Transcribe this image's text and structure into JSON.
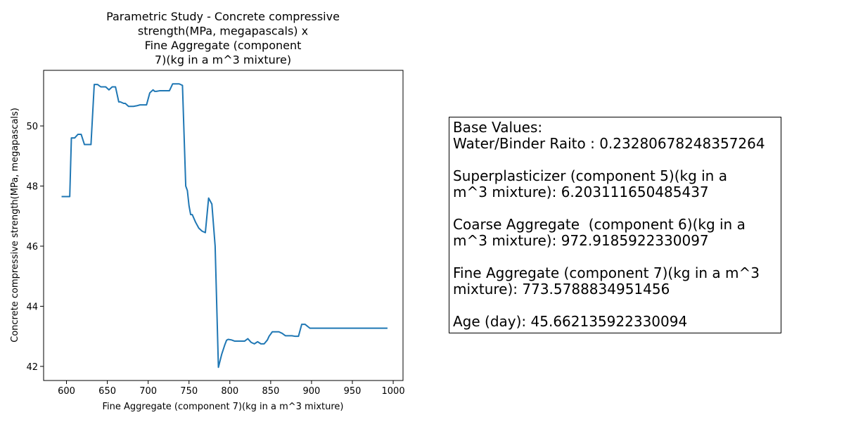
{
  "chart_data": {
    "type": "line",
    "title_lines": [
      "Parametric Study - Concrete compressive",
      "strength(MPa, megapascals)  x",
      "Fine Aggregate (component",
      "7)(kg in a m^3 mixture)"
    ],
    "xlabel": "Fine Aggregate (component 7)(kg in a m^3 mixture)",
    "ylabel": "Concrete compressive strength(MPa, megapascals)",
    "xlim": [
      572,
      1012
    ],
    "ylim": [
      41.53,
      51.85
    ],
    "x_ticks": [
      600,
      650,
      700,
      750,
      800,
      850,
      900,
      950,
      1000
    ],
    "y_ticks": [
      42,
      44,
      46,
      48,
      50
    ],
    "grid": false,
    "color": "#1f77b4",
    "x": [
      594,
      600,
      604,
      606,
      610,
      614,
      618,
      622,
      630,
      634,
      638,
      642,
      648,
      652,
      656,
      660,
      664,
      666,
      670,
      672,
      676,
      680,
      682,
      686,
      690,
      694,
      698,
      702,
      706,
      708,
      710,
      714,
      718,
      720,
      726,
      730,
      734,
      738,
      742,
      746,
      748,
      750,
      752,
      754,
      758,
      762,
      766,
      770,
      774,
      778,
      782,
      786,
      790,
      794,
      796,
      798,
      802,
      806,
      810,
      814,
      818,
      822,
      826,
      830,
      834,
      838,
      842,
      846,
      848,
      852,
      856,
      860,
      864,
      868,
      872,
      876,
      880,
      884,
      888,
      892,
      898,
      900,
      904,
      906,
      910,
      914,
      918,
      930,
      950,
      970,
      993
    ],
    "y": [
      47.65,
      47.65,
      47.65,
      49.6,
      49.6,
      49.72,
      49.72,
      49.38,
      49.38,
      51.38,
      51.38,
      51.3,
      51.3,
      51.2,
      51.3,
      51.3,
      50.8,
      50.8,
      50.75,
      50.75,
      50.65,
      50.65,
      50.65,
      50.67,
      50.7,
      50.7,
      50.7,
      51.1,
      51.2,
      51.15,
      51.15,
      51.17,
      51.17,
      51.17,
      51.17,
      51.4,
      51.4,
      51.4,
      51.35,
      48.0,
      47.85,
      47.35,
      47.05,
      47.05,
      46.8,
      46.6,
      46.5,
      46.45,
      47.6,
      47.4,
      46.0,
      41.97,
      42.4,
      42.73,
      42.87,
      42.9,
      42.88,
      42.84,
      42.84,
      42.84,
      42.84,
      42.92,
      42.8,
      42.75,
      42.82,
      42.75,
      42.75,
      42.88,
      43.0,
      43.15,
      43.15,
      43.15,
      43.1,
      43.02,
      43.02,
      43.02,
      43.0,
      43.0,
      43.4,
      43.4,
      43.27,
      43.27,
      43.27,
      43.27,
      43.27,
      43.27,
      43.27,
      43.27,
      43.27,
      43.27,
      43.27
    ]
  },
  "info_box": {
    "lines": [
      "Base Values:",
      "Water/Binder Raito : 0.23280678248357264",
      "",
      "Superplasticizer (component 5)(kg in a",
      "m^3 mixture): 6.203111650485437",
      "",
      "Coarse Aggregate  (component 6)(kg in a",
      "m^3 mixture): 972.9185922330097",
      "",
      "Fine Aggregate (component 7)(kg in a m^3",
      "mixture): 773.5788834951456",
      "",
      "Age (day): 45.662135922330094"
    ]
  }
}
